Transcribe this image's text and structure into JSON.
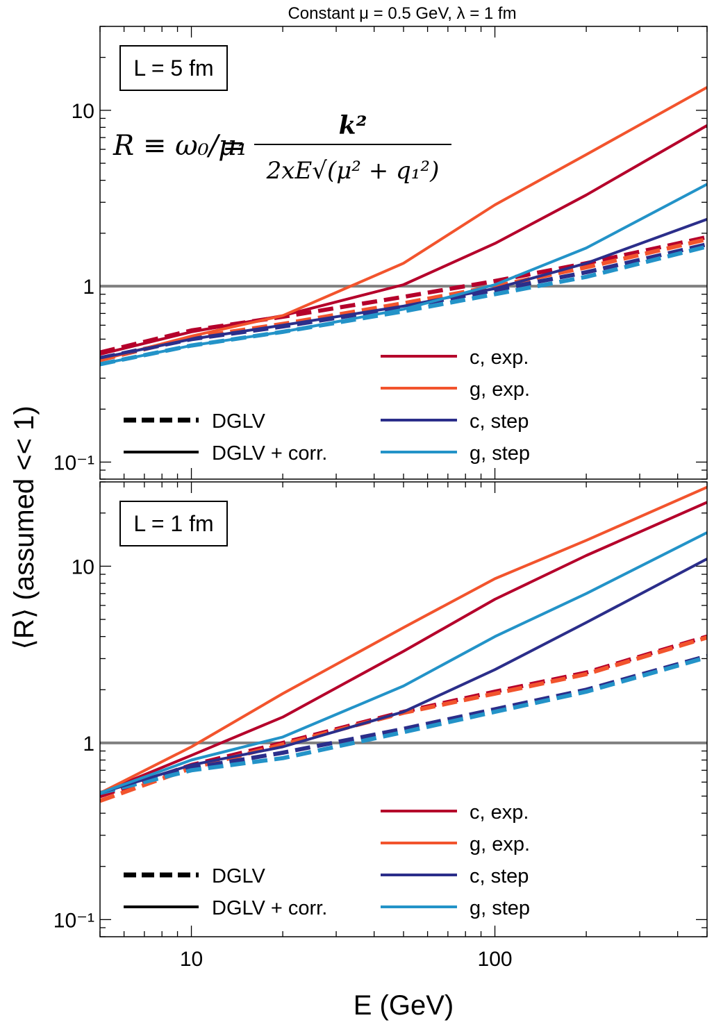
{
  "figure_title": "Constant μ = 0.5 GeV, λ = 1 fm",
  "ylabel": "⟨R⟩ (assumed << 1)",
  "xlabel": "E (GeV)",
  "formula": {
    "lhs": "R ≡ ω₀/μ₁",
    "rhs_num": "k²",
    "rhs_den": "2xE√(μ² + q₁²)"
  },
  "legend_styles": [
    {
      "label": "DGLV",
      "style": "dashed"
    },
    {
      "label": "DGLV + corr.",
      "style": "solid"
    }
  ],
  "colors": {
    "c_exp": "#B5002B",
    "g_exp": "#F2542D",
    "c_step": "#2B2E8A",
    "g_step": "#2393C8",
    "ref_line": "#808080"
  },
  "chart_data": [
    {
      "type": "line",
      "panel_label": "L = 5 fm",
      "xscale": "log",
      "yscale": "log",
      "xlim": [
        5,
        500
      ],
      "ylim": [
        0.08,
        30
      ],
      "reference_line_y": 1,
      "x": [
        5,
        10,
        20,
        50,
        100,
        200,
        500
      ],
      "series": [
        {
          "name": "c, exp.",
          "color_key": "c_exp",
          "style": "solid",
          "values": [
            0.41,
            0.55,
            0.68,
            1.02,
            1.75,
            3.3,
            8.2
          ]
        },
        {
          "name": "g, exp.",
          "color_key": "g_exp",
          "style": "solid",
          "values": [
            0.38,
            0.52,
            0.68,
            1.35,
            2.9,
            5.6,
            13.5
          ]
        },
        {
          "name": "c, step",
          "color_key": "c_step",
          "style": "solid",
          "values": [
            0.39,
            0.5,
            0.6,
            0.77,
            0.97,
            1.35,
            2.4
          ]
        },
        {
          "name": "g, step",
          "color_key": "g_step",
          "style": "solid",
          "values": [
            0.36,
            0.46,
            0.55,
            0.74,
            1.02,
            1.65,
            3.8
          ]
        },
        {
          "name": "c, exp. (DGLV)",
          "color_key": "c_exp",
          "style": "dashed",
          "values": [
            0.42,
            0.56,
            0.67,
            0.87,
            1.07,
            1.35,
            1.9
          ]
        },
        {
          "name": "g, exp. (DGLV)",
          "color_key": "g_exp",
          "style": "dashed",
          "values": [
            0.38,
            0.51,
            0.61,
            0.8,
            1.0,
            1.28,
            1.85
          ]
        },
        {
          "name": "c, step (DGLV)",
          "color_key": "c_step",
          "style": "dashed",
          "values": [
            0.39,
            0.5,
            0.59,
            0.76,
            0.95,
            1.2,
            1.73
          ]
        },
        {
          "name": "g, step (DGLV)",
          "color_key": "g_step",
          "style": "dashed",
          "values": [
            0.36,
            0.46,
            0.55,
            0.72,
            0.9,
            1.13,
            1.68
          ]
        }
      ],
      "legend": [
        "c, exp.",
        "g, exp.",
        "c, step",
        "g, step"
      ]
    },
    {
      "type": "line",
      "panel_label": "L = 1 fm",
      "xscale": "log",
      "yscale": "log",
      "xlim": [
        5,
        500
      ],
      "ylim": [
        0.08,
        30
      ],
      "reference_line_y": 1,
      "x": [
        5,
        10,
        20,
        50,
        100,
        200,
        500
      ],
      "series": [
        {
          "name": "c, exp.",
          "color_key": "c_exp",
          "style": "solid",
          "values": [
            0.52,
            0.85,
            1.4,
            3.3,
            6.5,
            11.5,
            23
          ]
        },
        {
          "name": "g, exp.",
          "color_key": "g_exp",
          "style": "solid",
          "values": [
            0.52,
            0.95,
            1.9,
            4.5,
            8.5,
            14,
            28
          ]
        },
        {
          "name": "c, step",
          "color_key": "c_step",
          "style": "solid",
          "values": [
            0.52,
            0.75,
            0.95,
            1.5,
            2.6,
            4.8,
            11
          ]
        },
        {
          "name": "g, step",
          "color_key": "g_step",
          "style": "solid",
          "values": [
            0.52,
            0.8,
            1.08,
            2.1,
            4.0,
            7.0,
            15.5
          ]
        },
        {
          "name": "c, exp. (DGLV)",
          "color_key": "c_exp",
          "style": "dashed",
          "values": [
            0.5,
            0.75,
            1.0,
            1.5,
            1.95,
            2.5,
            4.0
          ]
        },
        {
          "name": "g, exp. (DGLV)",
          "color_key": "g_exp",
          "style": "dashed",
          "values": [
            0.47,
            0.72,
            0.98,
            1.48,
            1.9,
            2.45,
            3.95
          ]
        },
        {
          "name": "c, step (DGLV)",
          "color_key": "c_step",
          "style": "dashed",
          "values": [
            0.52,
            0.72,
            0.88,
            1.2,
            1.55,
            2.0,
            3.1
          ]
        },
        {
          "name": "g, step (DGLV)",
          "color_key": "g_step",
          "style": "dashed",
          "values": [
            0.52,
            0.7,
            0.82,
            1.15,
            1.5,
            1.95,
            3.05
          ]
        }
      ],
      "legend": [
        "c, exp.",
        "g, exp.",
        "c, step",
        "g, step"
      ]
    }
  ],
  "x_ticks": [
    {
      "value": 10,
      "label": "10"
    },
    {
      "value": 100,
      "label": "100"
    }
  ],
  "y_ticks": [
    {
      "value": 0.1,
      "label": "10⁻¹"
    },
    {
      "value": 1,
      "label": "1"
    },
    {
      "value": 10,
      "label": "10"
    }
  ]
}
